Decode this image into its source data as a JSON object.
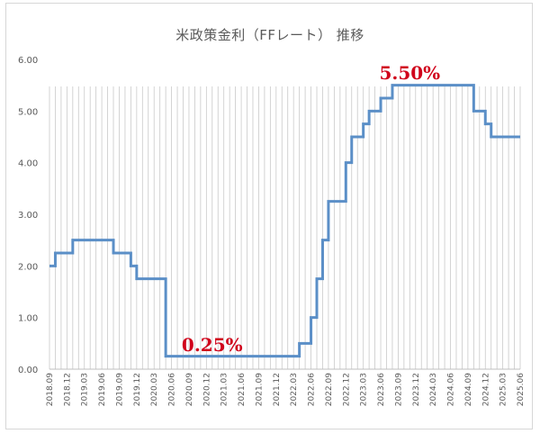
{
  "chart_data": {
    "type": "line",
    "title": "米政策金利（FFレート） 推移",
    "ylim": [
      0,
      6
    ],
    "y_ticks": [
      "0.00",
      "1.00",
      "2.00",
      "3.00",
      "4.00",
      "5.00",
      "6.00"
    ],
    "x_tick_labels": [
      "2018.09",
      "2018.12",
      "2019.03",
      "2019.06",
      "2019.09",
      "2019.12",
      "2020.03",
      "2020.06",
      "2020.09",
      "2020.12",
      "2021.03",
      "2021.06",
      "2021.09",
      "2021.12",
      "2022.03",
      "2022.06",
      "2022.09",
      "2022.12",
      "2023.03",
      "2023.06",
      "2023.09",
      "2023.12",
      "2024.03",
      "2024.06",
      "2024.09",
      "2024.12",
      "2025.03",
      "2025.06"
    ],
    "grid": "vertical lines per month",
    "colors": {
      "line": "#5b8fc7",
      "grid": "#c9c9c9",
      "annotation": "#d0021b"
    },
    "series": [
      {
        "x": [
          "2018.09",
          "2018.10",
          "2018.11",
          "2018.12",
          "2019.01",
          "2019.02",
          "2019.03",
          "2019.04",
          "2019.05",
          "2019.06",
          "2019.07",
          "2019.08",
          "2019.09",
          "2019.10",
          "2019.11",
          "2019.12",
          "2020.01",
          "2020.02",
          "2020.03",
          "2020.04",
          "2020.05",
          "2020.06",
          "2020.07",
          "2020.08",
          "2020.09",
          "2020.10",
          "2020.11",
          "2020.12",
          "2021.01",
          "2021.02",
          "2021.03",
          "2021.04",
          "2021.05",
          "2021.06",
          "2021.07",
          "2021.08",
          "2021.09",
          "2021.10",
          "2021.11",
          "2021.12",
          "2022.01",
          "2022.02",
          "2022.03",
          "2022.04",
          "2022.05",
          "2022.06",
          "2022.07",
          "2022.08",
          "2022.09",
          "2022.10",
          "2022.11",
          "2022.12",
          "2023.01",
          "2023.02",
          "2023.03",
          "2023.04",
          "2023.05",
          "2023.06",
          "2023.07",
          "2023.08",
          "2023.09",
          "2023.10",
          "2023.11",
          "2023.12",
          "2024.01",
          "2024.02",
          "2024.03",
          "2024.04",
          "2024.05",
          "2024.06",
          "2024.07",
          "2024.08",
          "2024.09",
          "2024.10",
          "2024.11",
          "2024.12",
          "2025.01",
          "2025.02",
          "2025.03",
          "2025.04",
          "2025.05",
          "2025.06"
        ],
        "values": [
          2.0,
          2.25,
          2.25,
          2.25,
          2.5,
          2.5,
          2.5,
          2.5,
          2.5,
          2.5,
          2.5,
          2.25,
          2.25,
          2.25,
          2.0,
          1.75,
          1.75,
          1.75,
          1.75,
          1.75,
          0.25,
          0.25,
          0.25,
          0.25,
          0.25,
          0.25,
          0.25,
          0.25,
          0.25,
          0.25,
          0.25,
          0.25,
          0.25,
          0.25,
          0.25,
          0.25,
          0.25,
          0.25,
          0.25,
          0.25,
          0.25,
          0.25,
          0.25,
          0.5,
          0.5,
          1.0,
          1.75,
          2.5,
          3.25,
          3.25,
          3.25,
          4.0,
          4.5,
          4.5,
          4.75,
          5.0,
          5.0,
          5.25,
          5.25,
          5.5,
          5.5,
          5.5,
          5.5,
          5.5,
          5.5,
          5.5,
          5.5,
          5.5,
          5.5,
          5.5,
          5.5,
          5.5,
          5.5,
          5.0,
          5.0,
          4.75,
          4.5,
          4.5,
          4.5,
          4.5,
          4.5,
          4.5
        ]
      }
    ],
    "annotations": [
      {
        "text": "5.50%",
        "x": "2023.11",
        "y": 5.72
      },
      {
        "text": "0.25%",
        "x": "2021.01",
        "y": 0.45
      }
    ]
  }
}
